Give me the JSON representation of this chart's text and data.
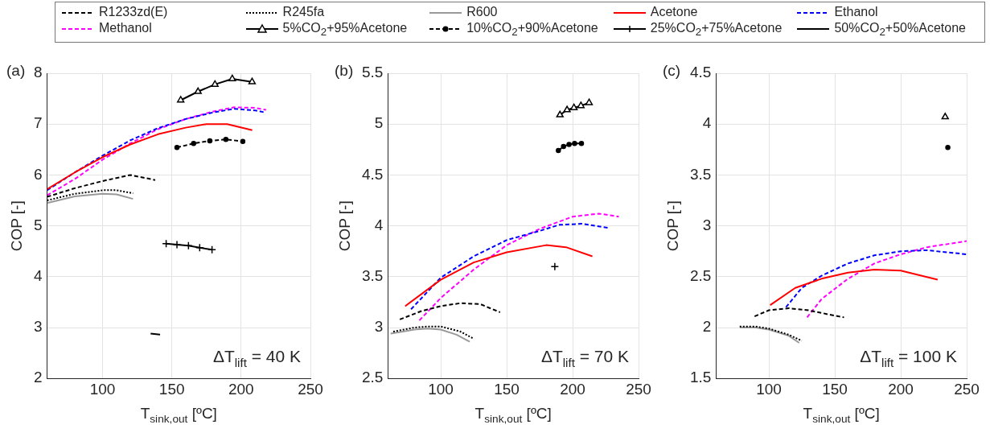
{
  "chart_data": [
    {
      "type": "line",
      "title": "(a)",
      "xlabel": "T$_{sink,out}$ [ºC]",
      "ylabel": "COP [-]",
      "annotations": [
        "ΔT$_{lift}$ = 40 K"
      ],
      "xlim": [
        60,
        250
      ],
      "xticks": [
        100,
        150,
        200,
        250
      ],
      "ylim": [
        2,
        8
      ],
      "yticks": [
        2,
        3,
        4,
        5,
        6,
        7,
        8
      ],
      "grid": true,
      "legend": "top",
      "series": [
        {
          "name": "R1233zd(E)",
          "color": "#000000",
          "line_style": "dashed",
          "marker": "none",
          "x": [
            60,
            80,
            100,
            120,
            138
          ],
          "values": [
            5.57,
            5.74,
            5.88,
            6.0,
            5.9
          ]
        },
        {
          "name": "R245fa",
          "color": "#000000",
          "line_style": "dotted",
          "marker": "none",
          "x": [
            60,
            80,
            100,
            110,
            122
          ],
          "values": [
            5.5,
            5.63,
            5.7,
            5.7,
            5.64
          ]
        },
        {
          "name": "R600",
          "color": "#999999",
          "line_style": "solid",
          "marker": "none",
          "x": [
            60,
            80,
            100,
            110,
            122
          ],
          "values": [
            5.45,
            5.58,
            5.63,
            5.62,
            5.53
          ]
        },
        {
          "name": "Acetone",
          "color": "#ff0000",
          "line_style": "solid",
          "marker": "none",
          "x": [
            60,
            80,
            100,
            120,
            140,
            160,
            175,
            190,
            208
          ],
          "values": [
            5.72,
            6.05,
            6.35,
            6.6,
            6.8,
            6.93,
            7.0,
            7.0,
            6.88
          ]
        },
        {
          "name": "Ethanol",
          "color": "#0000ff",
          "line_style": "dashed",
          "marker": "none",
          "x": [
            60,
            80,
            100,
            120,
            140,
            160,
            180,
            195,
            210,
            217
          ],
          "values": [
            5.7,
            6.05,
            6.38,
            6.68,
            6.92,
            7.1,
            7.23,
            7.3,
            7.27,
            7.23
          ]
        },
        {
          "name": "Methanol",
          "color": "#ff00ff",
          "line_style": "dashed",
          "marker": "none",
          "x": [
            60,
            80,
            100,
            120,
            140,
            160,
            180,
            195,
            210,
            218
          ],
          "values": [
            5.6,
            5.92,
            6.3,
            6.62,
            6.9,
            7.1,
            7.25,
            7.33,
            7.32,
            7.28
          ]
        },
        {
          "name": "5%CO$_{2}$+95%Acetone",
          "color": "#000000",
          "line_style": "solid",
          "marker": "triangle",
          "x": [
            156.4,
            168.9,
            181.1,
            193.6,
            207.9
          ],
          "values": [
            7.47,
            7.64,
            7.78,
            7.89,
            7.83
          ]
        },
        {
          "name": "10%CO$_{2}$+90%Acetone",
          "color": "#000000",
          "line_style": "dashed",
          "marker": "circle",
          "x": [
            153.7,
            165.7,
            177.4,
            189,
            201.2
          ],
          "values": [
            6.54,
            6.62,
            6.67,
            6.7,
            6.66
          ]
        },
        {
          "name": "25%CO$_{2}$+75%Acetone",
          "color": "#000000",
          "line_style": "solid",
          "marker": "cross",
          "x": [
            145.9,
            153.7,
            162,
            170.1,
            179
          ],
          "values": [
            4.65,
            4.63,
            4.61,
            4.57,
            4.53
          ]
        },
        {
          "name": "50%CO$_{2}$+50%Acetone",
          "color": "#000000",
          "line_style": "solid",
          "marker": "none",
          "x": [
            134.7,
            141.5
          ],
          "values": [
            2.88,
            2.86
          ]
        }
      ]
    },
    {
      "type": "line",
      "title": "(b)",
      "xlabel": "T$_{sink,out}$ [ºC]",
      "ylabel": "COP [-]",
      "annotations": [
        "ΔT$_{lift}$ = 70 K"
      ],
      "xlim": [
        60,
        250
      ],
      "xticks": [
        100,
        150,
        200,
        250
      ],
      "ylim": [
        2.5,
        5.5
      ],
      "yticks": [
        2.5,
        3,
        3.5,
        4,
        4.5,
        5,
        5.5
      ],
      "grid": true,
      "series": [
        {
          "color": "#000000",
          "line_style": "dashed",
          "marker": "none",
          "x": [
            69,
            85,
            100,
            115,
            130,
            145
          ],
          "values": [
            3.08,
            3.16,
            3.21,
            3.24,
            3.23,
            3.15
          ]
        },
        {
          "color": "#000000",
          "line_style": "dotted",
          "marker": "none",
          "x": [
            64,
            80,
            90,
            100,
            115,
            125
          ],
          "values": [
            2.96,
            3.0,
            3.01,
            3.01,
            2.96,
            2.89
          ]
        },
        {
          "color": "#999999",
          "line_style": "solid",
          "marker": "none",
          "x": [
            62,
            80,
            90,
            100,
            112,
            122
          ],
          "values": [
            2.94,
            2.98,
            2.99,
            2.98,
            2.93,
            2.86
          ]
        },
        {
          "color": "#ff0000",
          "line_style": "solid",
          "marker": "none",
          "x": [
            73,
            100,
            125,
            150,
            180,
            195,
            215
          ],
          "values": [
            3.21,
            3.47,
            3.64,
            3.74,
            3.81,
            3.79,
            3.7
          ]
        },
        {
          "color": "#0000ff",
          "line_style": "dashed",
          "marker": "none",
          "x": [
            77.5,
            100,
            125,
            150,
            175,
            190,
            207,
            227
          ],
          "values": [
            3.18,
            3.49,
            3.7,
            3.86,
            3.95,
            4.01,
            4.02,
            3.98
          ]
        },
        {
          "color": "#ff00ff",
          "line_style": "dashed",
          "marker": "none",
          "x": [
            83.8,
            100,
            125,
            150,
            175,
            200,
            220,
            235
          ],
          "values": [
            3.07,
            3.29,
            3.57,
            3.81,
            3.97,
            4.09,
            4.12,
            4.09
          ]
        },
        {
          "color": "#000000",
          "line_style": "solid",
          "marker": "triangle",
          "x": [
            190.4,
            195.8,
            201,
            206.3,
            212.5
          ],
          "values": [
            5.09,
            5.14,
            5.16,
            5.18,
            5.21
          ]
        },
        {
          "color": "#000000",
          "line_style": "dashed",
          "marker": "circle",
          "x": [
            189.2,
            193.1,
            197.3,
            201.5,
            206.7
          ],
          "values": [
            4.74,
            4.78,
            4.8,
            4.81,
            4.81
          ]
        },
        {
          "color": "#000000",
          "line_style": "solid",
          "marker": "cross",
          "x": [
            186.5
          ],
          "values": [
            3.6
          ]
        }
      ]
    },
    {
      "type": "line",
      "title": "(c)",
      "xlabel": "T$_{sink,out}$ [ºC]",
      "ylabel": "COP [-]",
      "annotations": [
        "ΔT$_{lift}$ = 100 K"
      ],
      "xlim": [
        60,
        250
      ],
      "xticks": [
        100,
        150,
        200,
        250
      ],
      "ylim": [
        1.5,
        4.5
      ],
      "yticks": [
        1.5,
        2,
        2.5,
        3,
        3.5,
        4,
        4.5
      ],
      "grid": true,
      "series": [
        {
          "color": "#000000",
          "line_style": "dashed",
          "marker": "none",
          "x": [
            89.2,
            100,
            115,
            130,
            145,
            157
          ],
          "values": [
            2.11,
            2.17,
            2.19,
            2.17,
            2.13,
            2.1
          ]
        },
        {
          "color": "#000000",
          "line_style": "dotted",
          "marker": "none",
          "x": [
            77.9,
            90,
            100,
            115,
            125
          ],
          "values": [
            2.01,
            2.01,
            1.99,
            1.93,
            1.87
          ]
        },
        {
          "color": "#999999",
          "line_style": "solid",
          "marker": "none",
          "x": [
            78,
            90,
            100,
            115,
            123
          ],
          "values": [
            2.0,
            2.0,
            1.98,
            1.92,
            1.85
          ]
        },
        {
          "color": "#ff0000",
          "line_style": "solid",
          "marker": "none",
          "x": [
            101,
            120,
            140,
            160,
            180,
            200,
            228
          ],
          "values": [
            2.22,
            2.39,
            2.48,
            2.54,
            2.57,
            2.56,
            2.47
          ]
        },
        {
          "color": "#0000ff",
          "line_style": "dashed",
          "marker": "none",
          "x": [
            113,
            125,
            140,
            160,
            180,
            200,
            220,
            250
          ],
          "values": [
            2.2,
            2.39,
            2.51,
            2.63,
            2.71,
            2.75,
            2.76,
            2.72
          ]
        },
        {
          "color": "#ff00ff",
          "line_style": "dashed",
          "marker": "none",
          "x": [
            129,
            140,
            160,
            180,
            200,
            220,
            250
          ],
          "values": [
            2.1,
            2.28,
            2.48,
            2.63,
            2.72,
            2.79,
            2.85
          ]
        },
        {
          "color": "#000000",
          "line_style": "solid",
          "marker": "triangle",
          "x": [
            233.7
          ],
          "values": [
            4.07
          ]
        },
        {
          "color": "#000000",
          "line_style": "dashed",
          "marker": "circle",
          "x": [
            235.7
          ],
          "values": [
            3.77
          ]
        }
      ]
    }
  ]
}
